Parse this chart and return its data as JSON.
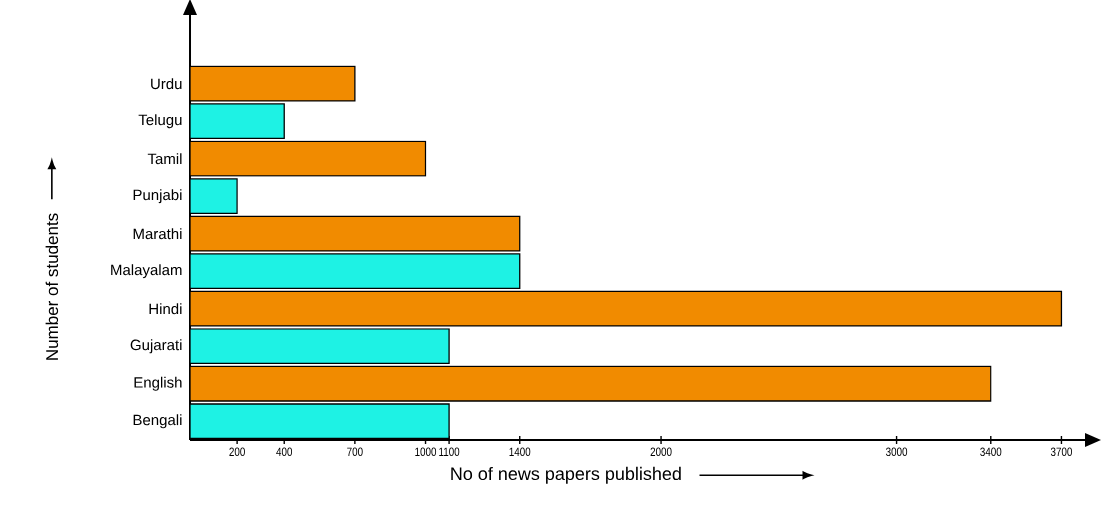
{
  "chart_data": {
    "type": "bar",
    "orientation": "horizontal",
    "categories": [
      "Urdu",
      "Telugu",
      "Tamil",
      "Punjabi",
      "Marathi",
      "Malayalam",
      "Hindi",
      "Gujarati",
      "English",
      "Bengali"
    ],
    "values": [
      700,
      400,
      1000,
      200,
      1400,
      1400,
      3700,
      1100,
      3400,
      1100
    ],
    "colors": [
      "#f18b00",
      "#1ef2e4",
      "#f18b00",
      "#1ef2e4",
      "#f18b00",
      "#1ef2e4",
      "#f18b00",
      "#1ef2e4",
      "#f18b00",
      "#1ef2e4"
    ],
    "xlabel": "No of news papers published",
    "ylabel": "Number of students",
    "xlim": [
      0,
      3800
    ],
    "xticks": [
      200,
      400,
      700,
      1000,
      1100,
      1400,
      2000,
      3000,
      3400,
      3700
    ]
  }
}
